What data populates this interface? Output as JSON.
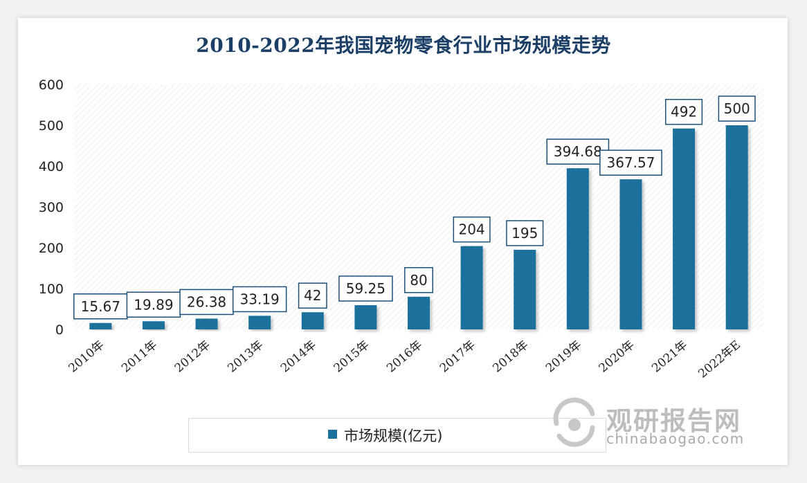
{
  "chart_data": {
    "type": "bar",
    "title": "2010-2022年我国宠物零食行业市场规模走势",
    "categories": [
      "2010年",
      "2011年",
      "2012年",
      "2013年",
      "2014年",
      "2015年",
      "2016年",
      "2017年",
      "2018年",
      "2019年",
      "2020年",
      "2021年",
      "2022年E"
    ],
    "series": [
      {
        "name": "市场规模(亿元)",
        "values": [
          15.67,
          19.89,
          26.38,
          33.19,
          42,
          59.25,
          80,
          204,
          195,
          394.68,
          367.57,
          492,
          500
        ]
      }
    ],
    "value_labels": [
      "15.67",
      "19.89",
      "26.38",
      "33.19",
      "42",
      "59.25",
      "80",
      "204",
      "195",
      "394.68",
      "367.57",
      "492",
      "500"
    ],
    "y_ticks": [
      "0",
      "100",
      "200",
      "300",
      "400",
      "500",
      "600"
    ],
    "ylim": [
      0,
      600
    ],
    "legend_position": "bottom",
    "bar_color": "#1c6f9c",
    "grid": false
  },
  "watermark": {
    "cn": "观研报告网",
    "en": "chinabaogao.com"
  }
}
